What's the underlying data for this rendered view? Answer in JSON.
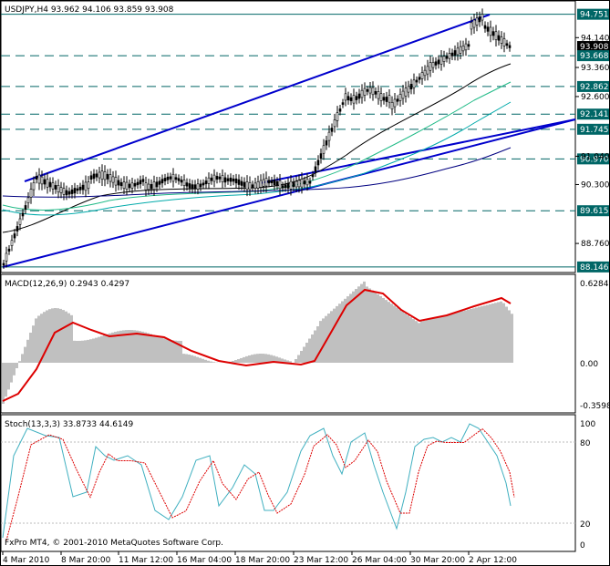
{
  "main_chart": {
    "title": "USDJPY,H4  93.962 94.106 93.859 93.908",
    "y_range": [
      88.0,
      95.1
    ],
    "price_labels": [
      "94.140",
      "93.360",
      "92.600",
      "91.040",
      "90.300",
      "88.760"
    ],
    "level_lines": [
      {
        "label": "94.751",
        "value": 94.751,
        "style": "solid"
      },
      {
        "label": "93.908",
        "value": 93.908,
        "style": "current"
      },
      {
        "label": "93.668",
        "value": 93.668,
        "style": "dashed"
      },
      {
        "label": "92.862",
        "value": 92.862,
        "style": "dashed"
      },
      {
        "label": "92.141",
        "value": 92.141,
        "style": "dashed"
      },
      {
        "label": "91.745",
        "value": 91.745,
        "style": "dashed"
      },
      {
        "label": "90.970",
        "value": 90.97,
        "style": "dashed"
      },
      {
        "label": "89.615",
        "value": 89.615,
        "style": "dashed"
      },
      {
        "label": "88.146",
        "value": 88.146,
        "style": "solid"
      }
    ]
  },
  "macd": {
    "title": "MACD(12,26,9) 0.2943 0.4297",
    "scale_labels": [
      "0.6284",
      "0.00",
      "-0.3598"
    ]
  },
  "stoch": {
    "title": "Stoch(13,3,3) 33.8733 44.6149",
    "scale_labels": [
      "100",
      "80",
      "20",
      "0"
    ]
  },
  "copyright": "FxPro MT4, © 2001-2010 MetaQuotes Software Corp.",
  "time_labels": [
    "4 Mar 2010",
    "8 Mar 20:00",
    "11 Mar 12:00",
    "16 Mar 04:00",
    "18 Mar 20:00",
    "23 Mar 12:00",
    "26 Mar 04:00",
    "30 Mar 20:00",
    "2 Apr 12:00"
  ],
  "colors": {
    "trend": "#0000cc",
    "level": "#006666",
    "label_bg": "#006666",
    "histogram": "#c0c0c0",
    "signal": "#dd0000",
    "stoch_main": "#40b0c0",
    "stoch_signal": "#dd0000"
  }
}
